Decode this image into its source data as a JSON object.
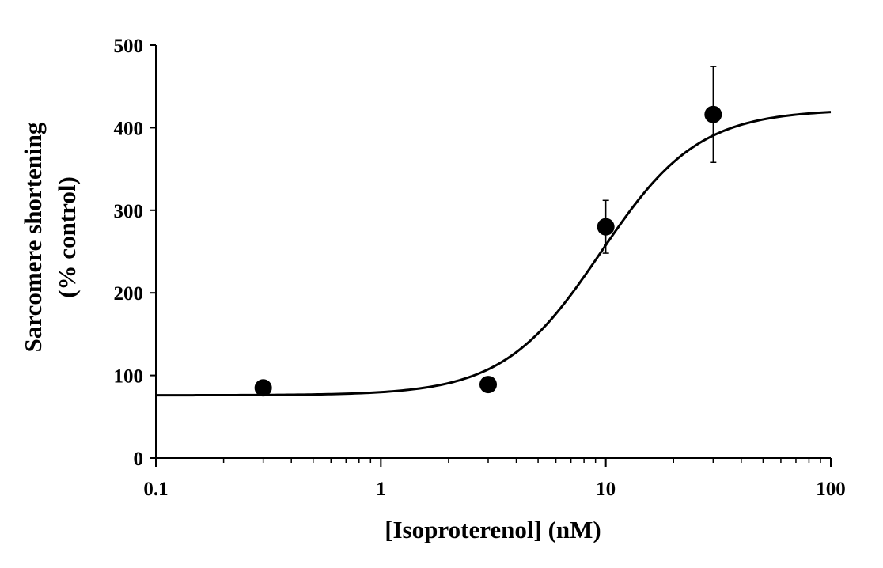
{
  "chart_data": {
    "type": "scatter",
    "title": "",
    "xlabel": "[Isoproterenol] (nM)",
    "ylabel_lines": [
      "Sarcomere shortening",
      "(% control)"
    ],
    "x_scale": "log",
    "xlim": [
      0.1,
      100
    ],
    "ylim": [
      0,
      500
    ],
    "x_ticks": [
      0.1,
      1,
      10,
      100
    ],
    "x_tick_labels": [
      "0.1",
      "1",
      "10",
      "100"
    ],
    "y_ticks": [
      0,
      100,
      200,
      300,
      400,
      500
    ],
    "y_tick_labels": [
      "0",
      "100",
      "200",
      "300",
      "400",
      "500"
    ],
    "grid": false,
    "legend": "none",
    "series": [
      {
        "points": [
          {
            "x": 0.3,
            "y": 85,
            "err": 0
          },
          {
            "x": 3,
            "y": 89,
            "err": 0
          },
          {
            "x": 10,
            "y": 280,
            "err": 32
          },
          {
            "x": 30,
            "y": 416,
            "err": 58
          }
        ]
      }
    ],
    "fit_curve": {
      "model": "sigmoid",
      "bottom": 76,
      "top": 422,
      "ec50": 9.5,
      "hill": 2
    },
    "colors": {
      "marker": "#000000",
      "line": "#000000"
    }
  }
}
